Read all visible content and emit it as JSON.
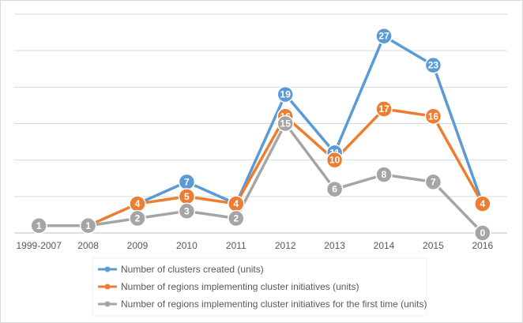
{
  "chart_data": {
    "type": "line",
    "categories": [
      "1999-2007",
      "2008",
      "2009",
      "2010",
      "2011",
      "2012",
      "2013",
      "2014",
      "2015",
      "2016"
    ],
    "series": [
      {
        "name": "Number of clusters created (units)",
        "color": "#5b9bd5",
        "values": [
          null,
          null,
          4,
          7,
          4,
          19,
          11,
          27,
          23,
          4
        ],
        "show_labels": [
          false,
          false,
          false,
          true,
          false,
          true,
          true,
          true,
          true,
          false
        ]
      },
      {
        "name": "Number of regions implementing cluster initiatives (units)",
        "color": "#ed7d31",
        "values": [
          null,
          1,
          4,
          5,
          4,
          16,
          10,
          17,
          16,
          4
        ],
        "show_labels": [
          false,
          false,
          true,
          true,
          true,
          true,
          true,
          true,
          true,
          true
        ]
      },
      {
        "name": "Number of regions implementing cluster initiatives for the first time (units)",
        "color": "#a5a5a5",
        "values": [
          1,
          1,
          2,
          3,
          2,
          15,
          6,
          8,
          7,
          0
        ],
        "show_labels": [
          true,
          true,
          true,
          true,
          true,
          true,
          true,
          true,
          true,
          true
        ]
      }
    ],
    "ylim": [
      0,
      30
    ],
    "grid": true,
    "legend_position": "bottom-center"
  }
}
